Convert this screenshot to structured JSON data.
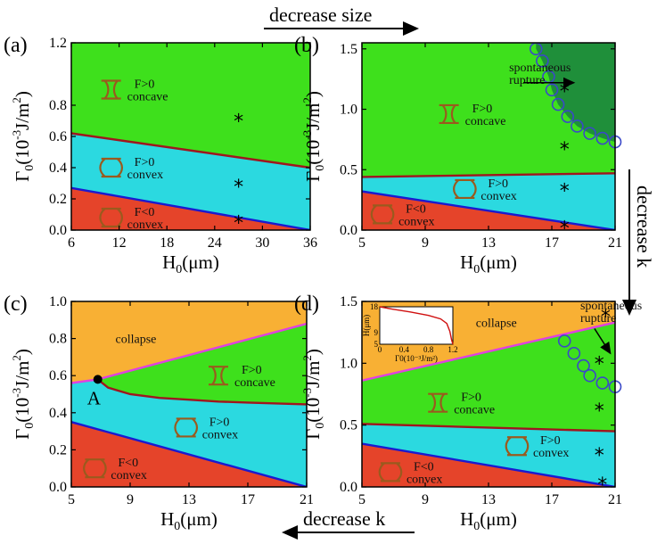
{
  "colors": {
    "red_region": "#e5442a",
    "cyan_region": "#2bd9e0",
    "green_region": "#3ee01c",
    "orange_region": "#f8b034",
    "darkgreen_region": "#1f8f3a",
    "blue_line": "#1a1ad0",
    "red_line": "#a0161e",
    "magenta_line": "#e040e0",
    "circle_marker": "#3a48c8",
    "droplet": "#9a5a1e"
  },
  "annotations": {
    "decrease_size": "decrease size",
    "decrease_k_right": "decrease k",
    "decrease_k_bottom": "decrease k",
    "point_A": "A"
  },
  "chart_data": [
    {
      "panel": "(a)",
      "type": "area",
      "xlabel": "H0(μm)",
      "ylabel": "Γ0(10⁻³J/m²)",
      "xlim": [
        6,
        36
      ],
      "ylim": [
        0,
        1.2
      ],
      "xticks": [
        "6",
        "12",
        "18",
        "24",
        "30",
        "36"
      ],
      "yticks": [
        "0.0",
        "0.2",
        "0.4",
        "0.6",
        "0.8",
        "1.2"
      ],
      "ytick_values": [
        0,
        0.2,
        0.4,
        0.6,
        0.8,
        1.2
      ],
      "boundaries": [
        {
          "color": "blue",
          "x": [
            6,
            36
          ],
          "y": [
            0.27,
            0.0
          ]
        },
        {
          "color": "red",
          "x": [
            6,
            36
          ],
          "y": [
            0.62,
            0.4
          ]
        }
      ],
      "regions": [
        {
          "label": [
            "F<0",
            "convex"
          ],
          "color": "red",
          "shape": "convex",
          "at": [
            11,
            0.08
          ]
        },
        {
          "label": [
            "F>0",
            "convex"
          ],
          "color": "cyan",
          "shape": "convex",
          "at": [
            11,
            0.4
          ]
        },
        {
          "label": [
            "F>0",
            "concave"
          ],
          "color": "green",
          "shape": "concave",
          "at": [
            11,
            0.9
          ]
        }
      ],
      "stars": [
        [
          27,
          0.05
        ],
        [
          27,
          0.28
        ],
        [
          27,
          0.7
        ]
      ]
    },
    {
      "panel": "(b)",
      "type": "area",
      "xlabel": "H0(μm)",
      "ylabel": "Γ0(10⁻³J/m²)",
      "xlim": [
        5,
        21
      ],
      "ylim": [
        0,
        1.55
      ],
      "xticks": [
        "5",
        "9",
        "13",
        "17",
        "21"
      ],
      "yticks": [
        "0.0",
        "0.5",
        "1.0",
        "1.5"
      ],
      "ytick_values": [
        0,
        0.5,
        1.0,
        1.5
      ],
      "boundaries": [
        {
          "color": "blue",
          "x": [
            5,
            21
          ],
          "y": [
            0.32,
            0.0
          ]
        },
        {
          "color": "red",
          "x": [
            5,
            21
          ],
          "y": [
            0.44,
            0.47
          ]
        }
      ],
      "rupture_boundary": {
        "x": [
          16.0,
          16.4,
          16.8,
          17.0,
          17.4,
          18.0,
          18.6,
          19.4,
          20.2,
          21.0
        ],
        "y": [
          1.5,
          1.4,
          1.27,
          1.16,
          1.04,
          0.94,
          0.86,
          0.8,
          0.76,
          0.73
        ]
      },
      "regions": [
        {
          "label": [
            "F<0",
            "convex"
          ],
          "color": "red",
          "shape": "convex",
          "at": [
            6.3,
            0.13
          ]
        },
        {
          "label": [
            "F>0",
            "convex"
          ],
          "color": "cyan",
          "shape": "convex",
          "at": [
            11.5,
            0.34
          ]
        },
        {
          "label": [
            "F>0",
            "concave"
          ],
          "color": "green",
          "shape": "concave",
          "at": [
            10.5,
            0.96
          ]
        },
        {
          "label": [
            "spontaneous",
            "rupture"
          ],
          "color": "darkgreen",
          "shape": "none",
          "at": [
            14.3,
            1.3
          ]
        }
      ],
      "stars": [
        [
          17.8,
          0.02
        ],
        [
          17.8,
          0.33
        ],
        [
          17.8,
          0.67
        ],
        [
          17.8,
          1.15
        ]
      ]
    },
    {
      "panel": "(c)",
      "type": "area",
      "xlabel": "H0(μm)",
      "ylabel": "Γ0(10⁻³J/m²)",
      "xlim": [
        5,
        21
      ],
      "ylim": [
        0,
        1.0
      ],
      "xticks": [
        "5",
        "9",
        "13",
        "17",
        "21"
      ],
      "yticks": [
        "0.0",
        "0.2",
        "0.4",
        "0.6",
        "0.8",
        "1.0"
      ],
      "ytick_values": [
        0,
        0.2,
        0.4,
        0.6,
        0.8,
        1.0
      ],
      "boundaries": [
        {
          "color": "blue",
          "x": [
            5,
            21
          ],
          "y": [
            0.35,
            0.0
          ]
        },
        {
          "color": "magenta",
          "x": [
            5,
            6.8,
            21
          ],
          "y": [
            0.56,
            0.58,
            0.88
          ]
        },
        {
          "color": "red",
          "x": [
            6.8,
            7.5,
            9,
            11,
            13,
            15,
            17,
            19,
            21
          ],
          "y": [
            0.58,
            0.535,
            0.5,
            0.48,
            0.47,
            0.46,
            0.455,
            0.45,
            0.445
          ]
        }
      ],
      "point_A": [
        6.8,
        0.58
      ],
      "regions": [
        {
          "label": [
            "F<0",
            "convex"
          ],
          "color": "red",
          "shape": "convex",
          "at": [
            6.6,
            0.1
          ]
        },
        {
          "label": [
            "F>0",
            "convex"
          ],
          "color": "cyan",
          "shape": "convex",
          "at": [
            12.8,
            0.32
          ]
        },
        {
          "label": [
            "F>0",
            "concave"
          ],
          "color": "green",
          "shape": "concave",
          "at": [
            15,
            0.6
          ]
        },
        {
          "label": [
            "collapse"
          ],
          "color": "orange",
          "shape": "none",
          "at": [
            8,
            0.8
          ]
        }
      ],
      "stars": []
    },
    {
      "panel": "(d)",
      "type": "area",
      "xlabel": "H0(μm)",
      "ylabel": "Γ0(10⁻³J/m²)",
      "xlim": [
        5,
        21
      ],
      "ylim": [
        0,
        1.5
      ],
      "xticks": [
        "5",
        "9",
        "13",
        "17",
        "21"
      ],
      "yticks": [
        "0.0",
        "0.5",
        "1.0",
        "1.5"
      ],
      "ytick_values": [
        0,
        0.5,
        1.0,
        1.5
      ],
      "boundaries": [
        {
          "color": "blue",
          "x": [
            5,
            21
          ],
          "y": [
            0.35,
            0.0
          ]
        },
        {
          "color": "red",
          "x": [
            5,
            21
          ],
          "y": [
            0.51,
            0.45
          ]
        },
        {
          "color": "magenta",
          "x": [
            5,
            21
          ],
          "y": [
            0.86,
            1.33
          ]
        }
      ],
      "rupture_boundary": {
        "x": [
          17.8,
          18.4,
          19.0,
          19.4,
          20.2,
          21.0
        ],
        "y": [
          1.18,
          1.08,
          0.98,
          0.9,
          0.84,
          0.81
        ]
      },
      "regions": [
        {
          "label": [
            "F<0",
            "convex"
          ],
          "color": "red",
          "shape": "convex",
          "at": [
            6.8,
            0.12
          ]
        },
        {
          "label": [
            "F>0",
            "convex"
          ],
          "color": "cyan",
          "shape": "convex",
          "at": [
            14.8,
            0.33
          ]
        },
        {
          "label": [
            "F>0",
            "concave"
          ],
          "color": "green",
          "shape": "concave",
          "at": [
            9.8,
            0.68
          ]
        },
        {
          "label": [
            "collapse"
          ],
          "color": "orange",
          "shape": "none",
          "at": [
            12.2,
            1.33
          ]
        },
        {
          "label": [
            "spontaneous",
            "rupture"
          ],
          "color": "none",
          "shape": "none",
          "at": [
            18.8,
            1.42
          ]
        }
      ],
      "stars": [
        [
          20.2,
          0.02
        ],
        [
          20.0,
          0.26
        ],
        [
          20.0,
          0.62
        ],
        [
          20.0,
          1.0
        ],
        [
          20.4,
          1.38
        ]
      ],
      "inset": {
        "xlabel": "Γ0(10⁻³J/m²)",
        "ylabel": "H(μm)",
        "xticks": [
          "0",
          "0.4",
          "0.8",
          "1.2"
        ],
        "yticks": [
          "5",
          "9",
          "18"
        ],
        "curve": {
          "x": [
            0,
            0.2,
            0.5,
            0.8,
            1.0,
            1.1,
            1.15,
            1.18,
            1.2
          ],
          "y": [
            18,
            17.2,
            16.2,
            15,
            13.8,
            12.2,
            9.5,
            6.5,
            5
          ]
        }
      }
    }
  ]
}
